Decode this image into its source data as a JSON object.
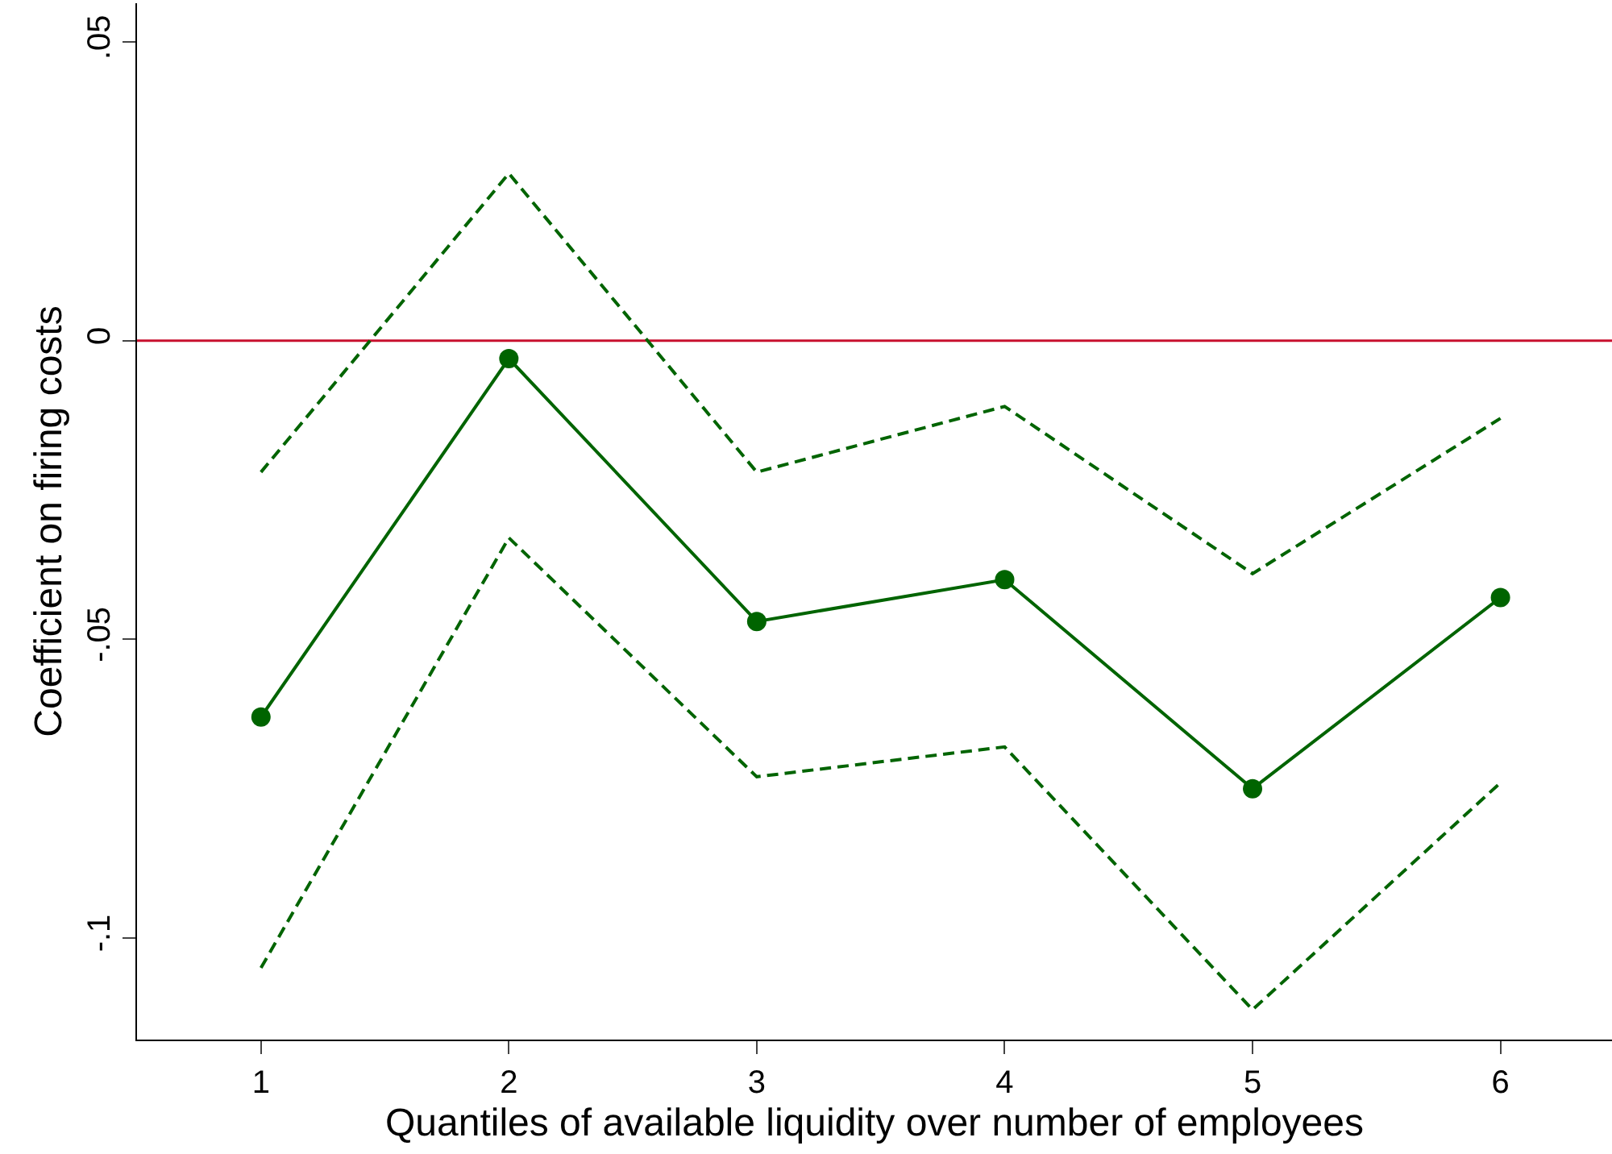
{
  "chart_data": {
    "type": "line",
    "xlabel": "Quantiles of available liquidity over number of employees",
    "ylabel": "Coefficient on firing costs",
    "x": [
      1,
      2,
      3,
      4,
      5,
      6
    ],
    "series": [
      {
        "color": "#006400",
        "values": [
          -0.063,
          -0.003,
          -0.047,
          -0.04,
          -0.075,
          -0.043
        ],
        "marker": "circle",
        "line_style": "solid"
      },
      {
        "color": "#006400",
        "values": [
          -0.022,
          0.028,
          -0.022,
          -0.011,
          -0.039,
          -0.013
        ],
        "marker": "none",
        "line_style": "dashed"
      },
      {
        "color": "#006400",
        "values": [
          -0.105,
          -0.033,
          -0.073,
          -0.068,
          -0.112,
          -0.074
        ],
        "marker": "none",
        "line_style": "dashed"
      }
    ],
    "xlim": [
      0.5,
      6.45
    ],
    "ylim": [
      -0.117,
      0.0565
    ],
    "xticks": [
      1,
      2,
      3,
      4,
      5,
      6
    ],
    "yticks": [
      {
        "value": -0.1,
        "label": "-.1"
      },
      {
        "value": -0.05,
        "label": "-.05"
      },
      0,
      {
        "value": 0.05,
        "label": ".05"
      }
    ],
    "ref_lines": [
      {
        "axis": "y",
        "value": 0,
        "color": "#c8102e",
        "line_style": "solid"
      }
    ],
    "grid": false
  }
}
